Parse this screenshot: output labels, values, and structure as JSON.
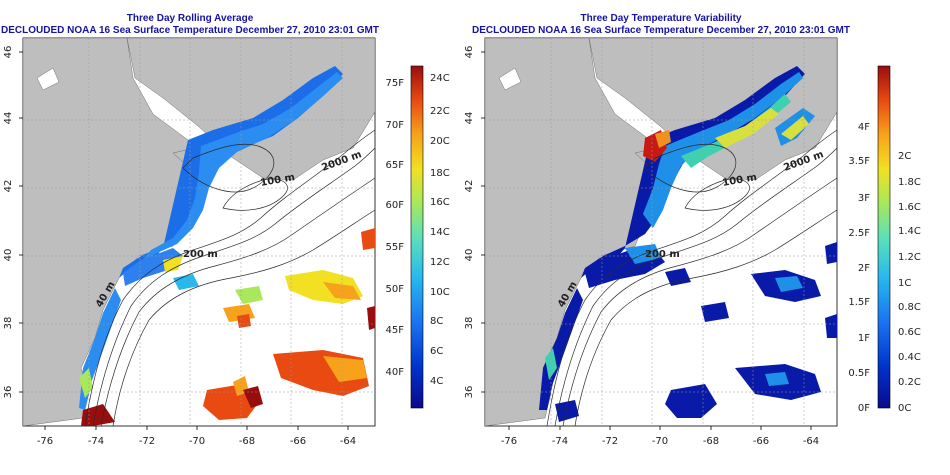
{
  "panels": [
    {
      "title": "Three Day Rolling Average",
      "subtitle": "DECLOUDED NOAA 16 Sea Surface Temperature December 27, 2010 23:01 GMT",
      "colorbar_left": [
        "75F",
        "70F",
        "65F",
        "60F",
        "55F",
        "50F",
        "45F",
        "40F"
      ],
      "colorbar_right": [
        "24C",
        "22C",
        "20C",
        "18C",
        "16C",
        "14C",
        "12C",
        "10C",
        "8C",
        "6C",
        "4C"
      ]
    },
    {
      "title": "Three Day Temperature Variability",
      "subtitle": "DECLOUDED NOAA 16 Sea Surface Temperature December 27, 2010 23:01 GMT",
      "colorbar_left": [
        "4F",
        "3.5F",
        "3F",
        "2.5F",
        "2F",
        "1.5F",
        "1F",
        "0.5F",
        "0F"
      ],
      "colorbar_right": [
        "2C",
        "1.8C",
        "1.6C",
        "1.4C",
        "1.2C",
        "1C",
        "0.8C",
        "0.6C",
        "0.4C",
        "0.2C",
        "0C"
      ]
    }
  ],
  "x_ticks": [
    "-76",
    "-74",
    "-72",
    "-70",
    "-68",
    "-66",
    "-64"
  ],
  "y_ticks": [
    "46",
    "44",
    "42",
    "40",
    "38",
    "36"
  ],
  "isobath_labels": [
    "2000 m",
    "100 m",
    "200 m",
    "40 m"
  ],
  "colors": {
    "land": "#bebebe",
    "ocean": "#ffffff",
    "title": "#1414a0"
  }
}
